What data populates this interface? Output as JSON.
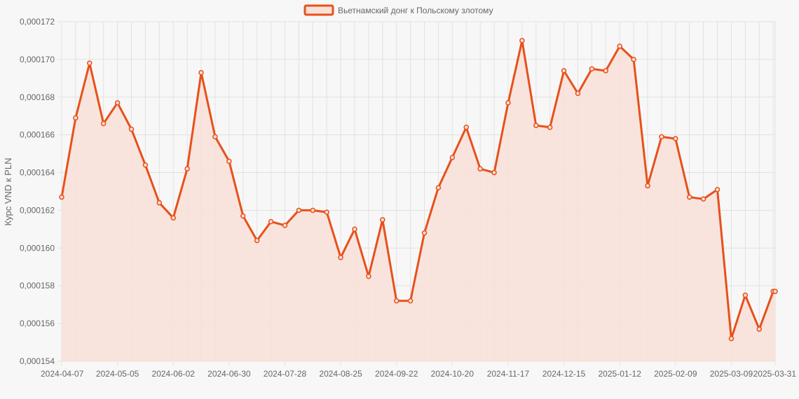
{
  "chart_data": {
    "type": "area",
    "title": "",
    "xlabel": "",
    "ylabel": "Курс VND к PLN",
    "legend": {
      "placement": "top-center",
      "entries": [
        "Вьетнамский донг к Польскому злотому"
      ]
    },
    "grid": true,
    "ylim": [
      0.000154,
      0.000172
    ],
    "y_ticks": [
      "0,000154",
      "0,000156",
      "0,000158",
      "0,000160",
      "0,000162",
      "0,000164",
      "0,000166",
      "0,000168",
      "0,000170",
      "0,000172"
    ],
    "x_ticks": [
      "2024-04-07",
      "2024-05-05",
      "2024-06-02",
      "2024-06-30",
      "2024-07-28",
      "2024-08-25",
      "2024-09-22",
      "2024-10-20",
      "2024-11-17",
      "2024-12-15",
      "2025-01-12",
      "2025-02-09",
      "2025-03-09",
      "2025-03-31"
    ],
    "colors": {
      "line": "#e8501a",
      "fill": "#f8e1d7",
      "grid": "#e2e2e2"
    },
    "series": [
      {
        "name": "Вьетнамский донг к Польскому злотому",
        "x": [
          "2024-04-07",
          "2024-04-14",
          "2024-04-21",
          "2024-04-28",
          "2024-05-05",
          "2024-05-12",
          "2024-05-19",
          "2024-05-26",
          "2024-06-02",
          "2024-06-09",
          "2024-06-16",
          "2024-06-23",
          "2024-06-30",
          "2024-07-07",
          "2024-07-14",
          "2024-07-21",
          "2024-07-28",
          "2024-08-04",
          "2024-08-11",
          "2024-08-18",
          "2024-08-25",
          "2024-09-01",
          "2024-09-08",
          "2024-09-15",
          "2024-09-22",
          "2024-09-29",
          "2024-10-06",
          "2024-10-13",
          "2024-10-20",
          "2024-10-27",
          "2024-11-03",
          "2024-11-10",
          "2024-11-17",
          "2024-11-24",
          "2024-12-01",
          "2024-12-08",
          "2024-12-15",
          "2024-12-22",
          "2024-12-29",
          "2025-01-05",
          "2025-01-12",
          "2025-01-19",
          "2025-01-26",
          "2025-02-02",
          "2025-02-09",
          "2025-02-16",
          "2025-02-23",
          "2025-03-02",
          "2025-03-09",
          "2025-03-16",
          "2025-03-23",
          "2025-03-30",
          "2025-03-31"
        ],
        "values": [
          0.0001627,
          0.0001669,
          0.0001698,
          0.0001666,
          0.0001677,
          0.0001663,
          0.0001644,
          0.0001624,
          0.0001616,
          0.0001642,
          0.0001693,
          0.0001659,
          0.0001646,
          0.0001617,
          0.0001604,
          0.0001614,
          0.0001612,
          0.000162,
          0.000162,
          0.0001619,
          0.0001595,
          0.000161,
          0.0001585,
          0.0001615,
          0.0001572,
          0.0001572,
          0.0001608,
          0.0001632,
          0.0001648,
          0.0001664,
          0.0001642,
          0.000164,
          0.0001677,
          0.000171,
          0.0001665,
          0.0001664,
          0.0001694,
          0.0001682,
          0.0001695,
          0.0001694,
          0.0001707,
          0.00017,
          0.0001633,
          0.0001659,
          0.0001658,
          0.0001627,
          0.0001626,
          0.0001631,
          0.0001552,
          0.0001575,
          0.0001557,
          0.0001577,
          0.0001577
        ]
      }
    ]
  }
}
